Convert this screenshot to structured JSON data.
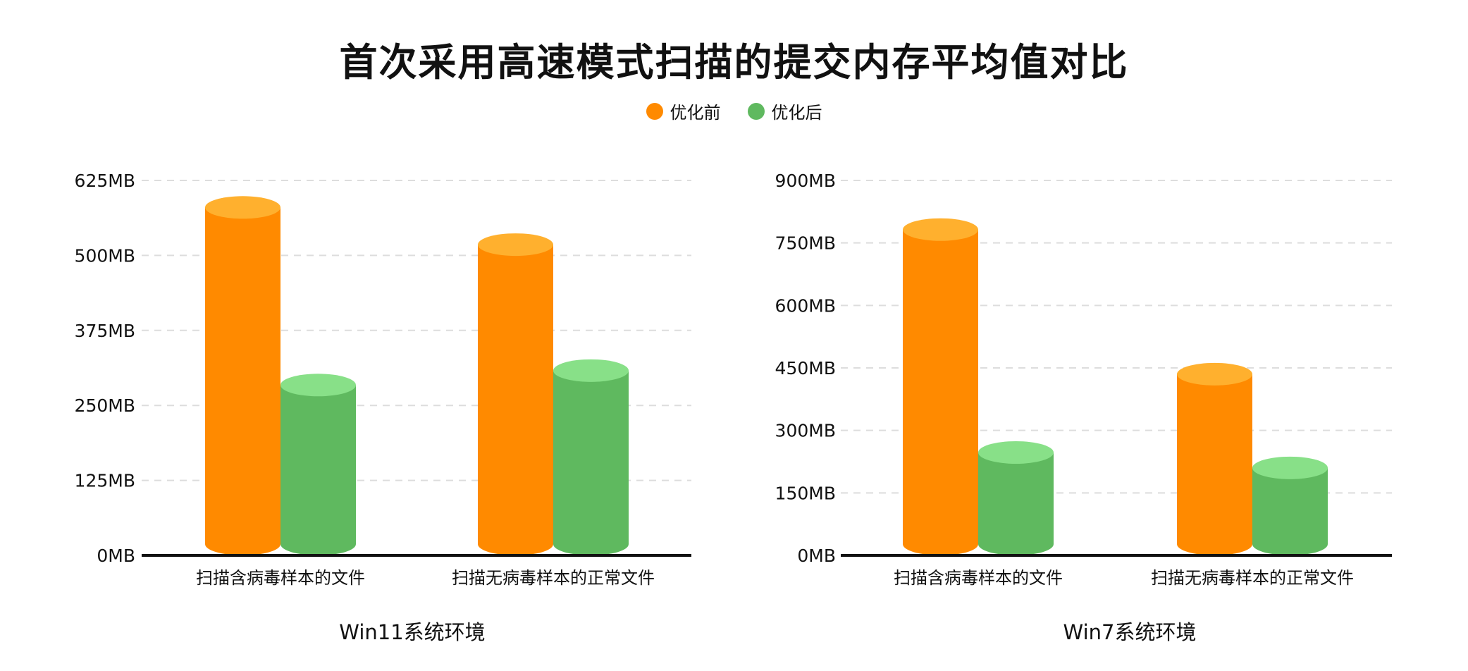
{
  "title": "首次采用高速模式扫描的提交内存平均值对比",
  "legend": [
    {
      "label": "优化前",
      "color": "#FF8A00"
    },
    {
      "label": "优化后",
      "color": "#5FB95F"
    }
  ],
  "colors": {
    "before_body": "#FF8A00",
    "before_top": "#FFB02E",
    "after_body": "#5FB95F",
    "after_top": "#88E088",
    "grid": "#DDDDDD",
    "axis": "#111111"
  },
  "chart_data": [
    {
      "type": "bar",
      "title": "Win11系统环境",
      "xlabel": "Win11系统环境",
      "ylabel": "",
      "categories": [
        "扫描含病毒样本的文件",
        "扫描无病毒样本的正常文件"
      ],
      "series": [
        {
          "name": "优化前",
          "values": [
            580,
            518
          ]
        },
        {
          "name": "优化后",
          "values": [
            284,
            308
          ]
        }
      ],
      "ylim": [
        0,
        625
      ],
      "yticks": [
        "0MB",
        "125MB",
        "250MB",
        "375MB",
        "500MB",
        "625MB"
      ],
      "unit": "MB",
      "grid": true,
      "legend_position": "top"
    },
    {
      "type": "bar",
      "title": "Win7系统环境",
      "xlabel": "Win7系统环境",
      "ylabel": "",
      "categories": [
        "扫描含病毒样本的文件",
        "扫描无病毒样本的正常文件"
      ],
      "series": [
        {
          "name": "优化前",
          "values": [
            782,
            435
          ]
        },
        {
          "name": "优化后",
          "values": [
            247,
            210
          ]
        }
      ],
      "ylim": [
        0,
        900
      ],
      "yticks": [
        "0MB",
        "150MB",
        "300MB",
        "450MB",
        "600MB",
        "750MB",
        "900MB"
      ],
      "unit": "MB",
      "grid": true,
      "legend_position": "top"
    }
  ]
}
